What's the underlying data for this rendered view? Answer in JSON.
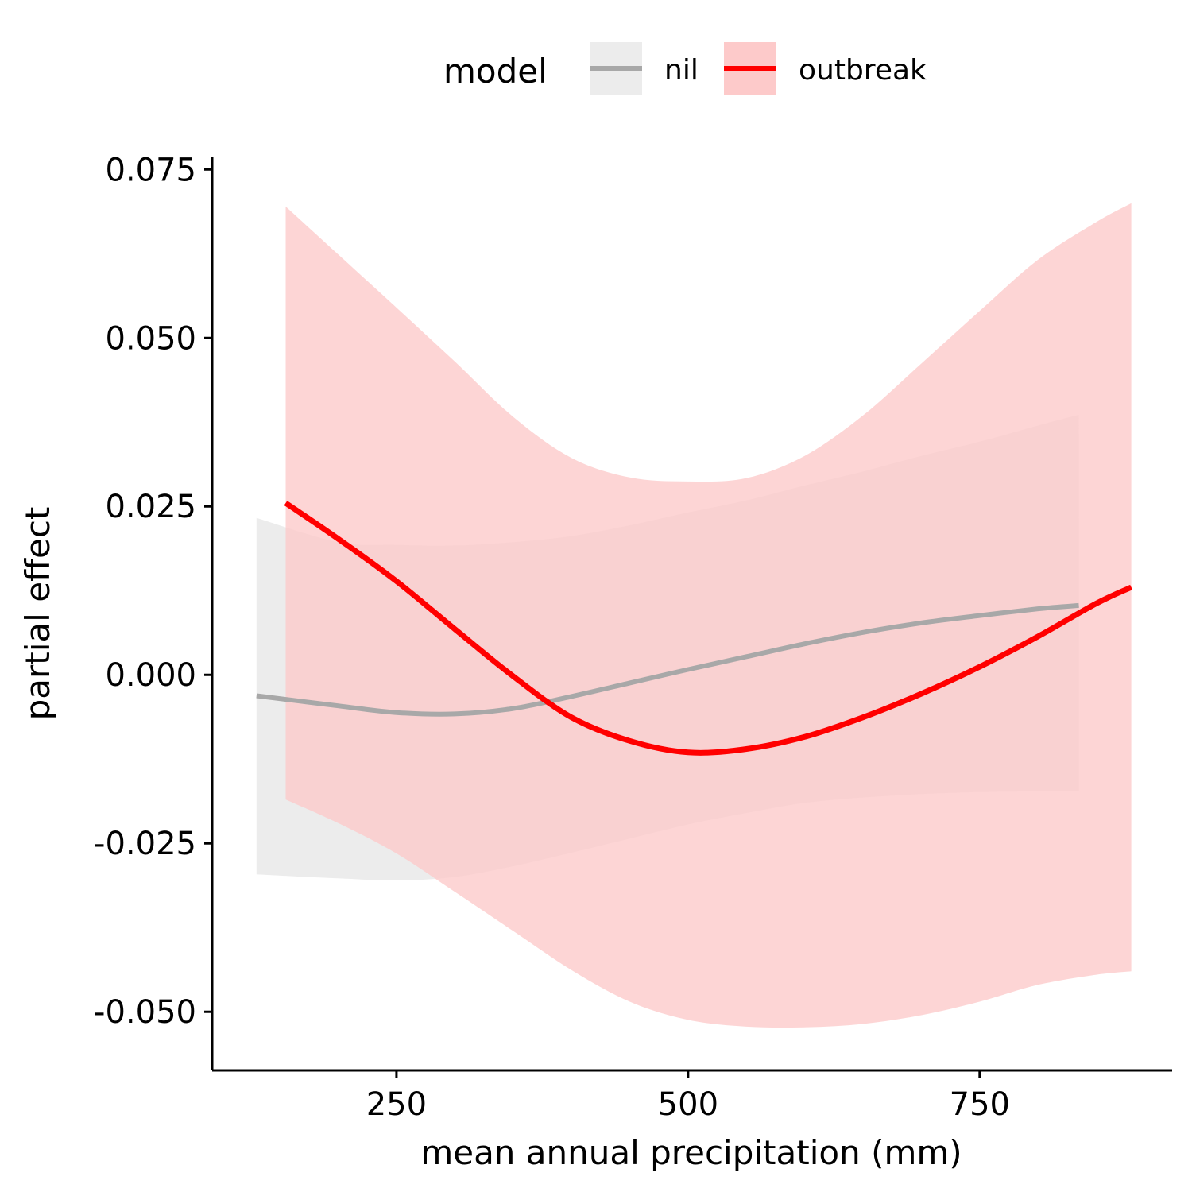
{
  "chart_data": {
    "type": "line",
    "title": "",
    "xlabel": "mean annual precipitation (mm)",
    "ylabel": "partial effect",
    "xlim": [
      92,
      915
    ],
    "ylim": [
      -0.0587,
      0.0768
    ],
    "x_ticks": [
      250,
      500,
      750
    ],
    "y_ticks": [
      -0.05,
      -0.025,
      0.0,
      0.025,
      0.05,
      0.075
    ],
    "x_tick_labels": [
      "250",
      "500",
      "750"
    ],
    "y_tick_labels": [
      "-0.050",
      "-0.025",
      "0.000",
      "0.025",
      "0.050",
      "0.075"
    ],
    "grid": false,
    "legend": {
      "title": "model",
      "position": "top",
      "entries": [
        "nil",
        "outbreak"
      ]
    },
    "series": [
      {
        "name": "nil",
        "color": "#a8a8a8",
        "fill_color": "#ececec",
        "x": [
          130,
          200,
          250,
          300,
          350,
          400,
          450,
          500,
          550,
          600,
          650,
          700,
          750,
          800,
          835
        ],
        "y": [
          -0.0031,
          -0.0046,
          -0.0056,
          -0.0058,
          -0.005,
          -0.0032,
          -0.0012,
          0.0008,
          0.0027,
          0.0046,
          0.0063,
          0.0077,
          0.0088,
          0.0098,
          0.0103
        ],
        "lower": [
          -0.0296,
          -0.0302,
          -0.0305,
          -0.03,
          -0.0284,
          -0.0264,
          -0.0243,
          -0.0222,
          -0.0205,
          -0.019,
          -0.0182,
          -0.0177,
          -0.0174,
          -0.0173,
          -0.0173
        ],
        "upper": [
          0.0233,
          0.0197,
          0.0193,
          0.0192,
          0.0197,
          0.0206,
          0.0222,
          0.0241,
          0.0259,
          0.0281,
          0.0302,
          0.0325,
          0.0346,
          0.037,
          0.0386
        ]
      },
      {
        "name": "outbreak",
        "color": "#ff0000",
        "fill_color": "#fdcaca",
        "x": [
          155,
          200,
          250,
          300,
          350,
          400,
          450,
          500,
          550,
          600,
          650,
          700,
          750,
          800,
          850,
          880
        ],
        "y": [
          0.0255,
          0.0202,
          0.0139,
          0.0068,
          -0.0002,
          -0.0063,
          -0.0098,
          -0.0115,
          -0.011,
          -0.0092,
          -0.0063,
          -0.0028,
          0.0012,
          0.0057,
          0.0106,
          0.013
        ],
        "lower": [
          -0.0185,
          -0.022,
          -0.0265,
          -0.0322,
          -0.038,
          -0.0438,
          -0.0485,
          -0.0512,
          -0.0522,
          -0.0523,
          -0.0518,
          -0.0505,
          -0.0485,
          -0.046,
          -0.0445,
          -0.044
        ],
        "upper": [
          0.0695,
          0.0624,
          0.0545,
          0.0465,
          0.0383,
          0.0322,
          0.0293,
          0.0287,
          0.0292,
          0.0325,
          0.0385,
          0.0462,
          0.054,
          0.0616,
          0.0672,
          0.07
        ]
      }
    ]
  }
}
